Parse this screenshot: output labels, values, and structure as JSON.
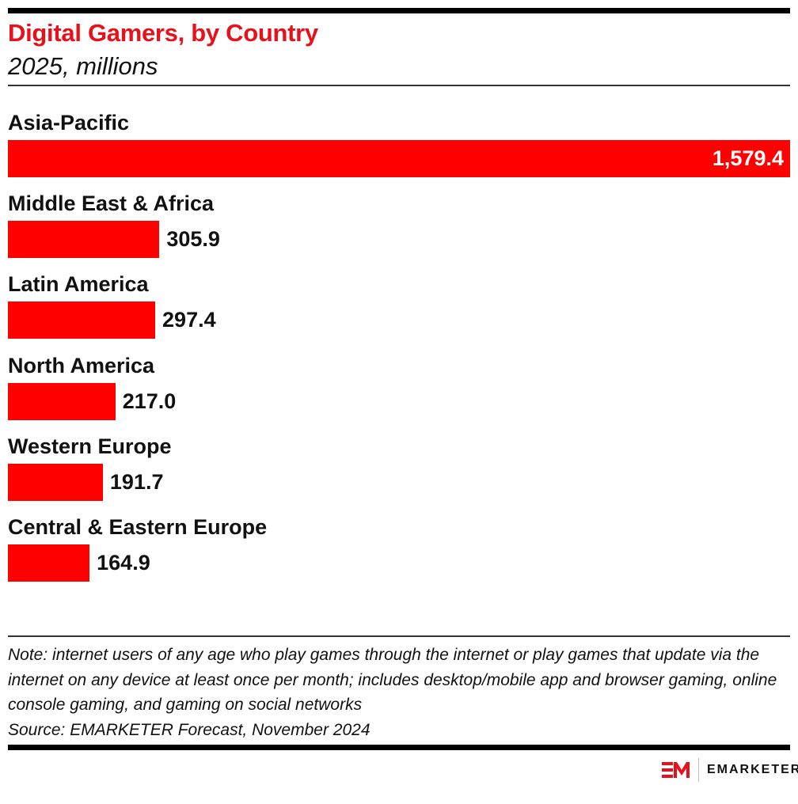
{
  "chart_data": {
    "type": "bar",
    "orientation": "horizontal",
    "title": "Digital Gamers, by Country",
    "subtitle": "2025, millions",
    "categories": [
      "Asia-Pacific",
      "Middle East & Africa",
      "Latin America",
      "North America",
      "Western Europe",
      "Central & Eastern Europe"
    ],
    "values": [
      1579.4,
      305.9,
      297.4,
      217.0,
      191.7,
      164.9
    ],
    "value_labels": [
      "1,579.4",
      "305.9",
      "297.4",
      "217.0",
      "191.7",
      "164.9"
    ],
    "xlim": [
      0,
      1579.4
    ],
    "grid": false,
    "bar_color": "#ff0000"
  },
  "note": "Note: internet users of any age who play games through the internet or play games that update via the internet on any device at least once per month; includes desktop/mobile app and browser gaming, online console gaming, and gaming on social networks",
  "source": "Source: EMARKETER Forecast, November 2024",
  "brand": {
    "logo_text": "EMARKETER",
    "accent": "#e8101a"
  }
}
